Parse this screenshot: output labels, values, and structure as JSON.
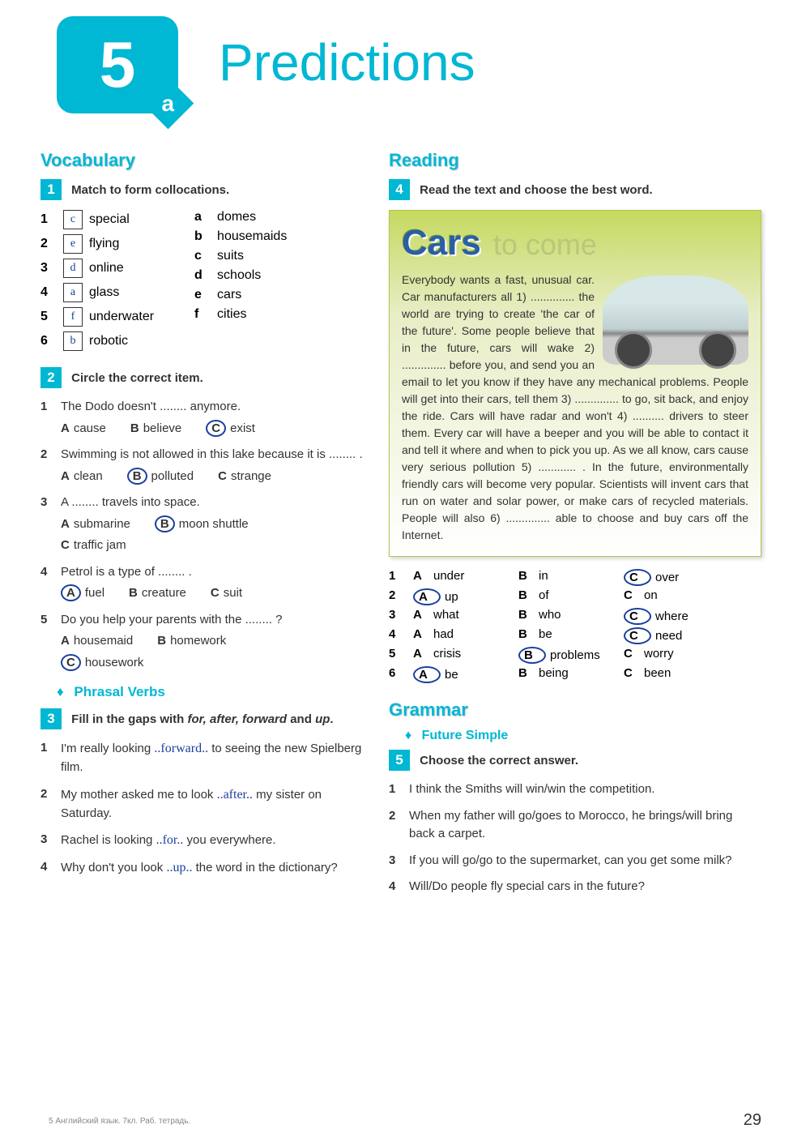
{
  "unit": {
    "number": "5",
    "sub": "a"
  },
  "title": "Predictions",
  "left": {
    "vocab_header": "Vocabulary",
    "task1": {
      "num": "1",
      "instruction": "Match to form collocations.",
      "left_items": [
        {
          "box": "c",
          "num": "1",
          "word": "special"
        },
        {
          "box": "e",
          "num": "2",
          "word": "flying"
        },
        {
          "box": "d",
          "num": "3",
          "word": "online"
        },
        {
          "box": "a",
          "num": "4",
          "word": "glass"
        },
        {
          "box": "f",
          "num": "5",
          "word": "underwater"
        },
        {
          "box": "b",
          "num": "6",
          "word": "robotic"
        }
      ],
      "right_items": [
        {
          "letter": "a",
          "word": "domes"
        },
        {
          "letter": "b",
          "word": "housemaids"
        },
        {
          "letter": "c",
          "word": "suits"
        },
        {
          "letter": "d",
          "word": "schools"
        },
        {
          "letter": "e",
          "word": "cars"
        },
        {
          "letter": "f",
          "word": "cities"
        }
      ]
    },
    "task2": {
      "num": "2",
      "instruction": "Circle the correct item.",
      "items": [
        {
          "n": "1",
          "text": "The Dodo doesn't ........ anymore.",
          "opts": [
            "A cause",
            "B believe",
            "C exist"
          ],
          "circ": 2
        },
        {
          "n": "2",
          "text": "Swimming is not allowed in this lake because it is ........ .",
          "opts": [
            "A clean",
            "B polluted",
            "C strange"
          ],
          "circ": 1
        },
        {
          "n": "3",
          "text": "A ........ travels into space.",
          "opts": [
            "A submarine",
            "B moon shuttle",
            "C traffic jam"
          ],
          "circ": 1,
          "wrap": true
        },
        {
          "n": "4",
          "text": "Petrol is a type of ........ .",
          "opts": [
            "A fuel",
            "B creature",
            "C suit"
          ],
          "circ": 0
        },
        {
          "n": "5",
          "text": "Do you help your parents with the ........ ?",
          "opts": [
            "A housemaid",
            "B homework",
            "C housework"
          ],
          "circ": 2,
          "wrap": true
        }
      ]
    },
    "phrasal_header": "Phrasal Verbs",
    "task3": {
      "num": "3",
      "instruction_pre": "Fill in the gaps with ",
      "instruction_italic": "for, after, forward",
      "instruction_mid": " and ",
      "instruction_italic2": "up",
      "instruction_end": ".",
      "items": [
        {
          "n": "1",
          "text_pre": "I'm really looking ",
          "ans": "forward",
          "text_post": " to seeing the new Spielberg film."
        },
        {
          "n": "2",
          "text_pre": "My mother asked me to look ",
          "ans": "after",
          "text_post": " my sister on Saturday."
        },
        {
          "n": "3",
          "text_pre": "Rachel is looking ",
          "ans": "for",
          "text_post": " you everywhere."
        },
        {
          "n": "4",
          "text_pre": "Why don't you look ",
          "ans": "up",
          "text_post": " the word in the dictionary?"
        }
      ]
    }
  },
  "right": {
    "reading_header": "Reading",
    "task4": {
      "num": "4",
      "instruction": "Read the text and choose the best word.",
      "title_cars": "Cars",
      "title_tocome": "to come",
      "text": "Everybody wants a fast, unusual car. Car manufacturers all 1) .............. the world are trying to create 'the car of the future'. Some people believe that in the future, cars will wake 2) .............. before you, and send you an email to let you know if they have any mechanical problems. People will get into their cars, tell them 3) .............. to go, sit back, and enjoy the ride. Cars will have radar and won't 4) .......... drivers to steer them. Every car will have a beeper and you will be able to contact it and tell it where and when to pick you up.\nAs we all know, cars cause very serious pollution 5) ............ . In the future, environmentally friendly cars will become very popular. Scientists will invent cars that run on water and solar power, or make cars of recycled materials. People will also 6) .............. able to choose and buy cars off the Internet.",
      "answers": [
        {
          "n": "1",
          "a": "A under",
          "b": "B in",
          "c": "C over",
          "circ": "c"
        },
        {
          "n": "2",
          "a": "A up",
          "b": "B of",
          "c": "C on",
          "circ": "a"
        },
        {
          "n": "3",
          "a": "A what",
          "b": "B who",
          "c": "C where",
          "circ": "c"
        },
        {
          "n": "4",
          "a": "A had",
          "b": "B be",
          "c": "C need",
          "circ": "c"
        },
        {
          "n": "5",
          "a": "A crisis",
          "b": "B problems",
          "c": "C worry",
          "circ": "b"
        },
        {
          "n": "6",
          "a": "A be",
          "b": "B being",
          "c": "C been",
          "circ": "a"
        }
      ]
    },
    "grammar_header": "Grammar",
    "grammar_sub": "Future Simple",
    "task5": {
      "num": "5",
      "instruction": "Choose the correct answer.",
      "items": [
        {
          "n": "1",
          "text": "I think the Smiths will win/win the competition."
        },
        {
          "n": "2",
          "text": "When my father will go/goes to Morocco, he brings/will bring back a carpet."
        },
        {
          "n": "3",
          "text": "If you will go/go to the supermarket, can you get some milk?"
        },
        {
          "n": "4",
          "text": "Will/Do people fly special cars in the future?"
        }
      ]
    }
  },
  "footer": "5 Английский язык. 7кл. Раб. тетрадь.",
  "page_num": "29"
}
